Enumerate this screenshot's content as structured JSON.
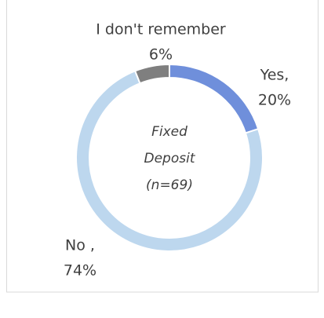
{
  "chart_data": {
    "type": "donut",
    "categories": [
      "Yes,",
      "No ,",
      "I don't remember"
    ],
    "values": [
      20,
      74,
      6
    ],
    "value_labels": [
      "20%",
      "74%",
      "6%"
    ],
    "colors": [
      "#6f8fdb",
      "#bdd7ee",
      "#7f7f7f"
    ],
    "center_label": [
      "Fixed",
      "Deposit",
      "(n=69)"
    ]
  }
}
